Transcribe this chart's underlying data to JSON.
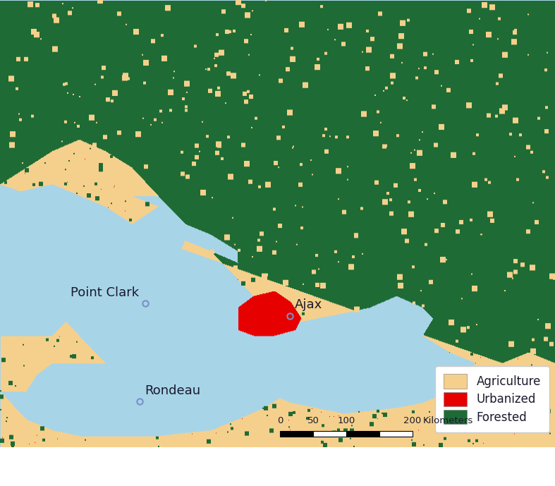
{
  "figsize": [
    7.87,
    6.89
  ],
  "dpi": 100,
  "background_color": "#ffffff",
  "water_color": [
    168,
    212,
    232
  ],
  "agriculture_color": [
    245,
    208,
    140
  ],
  "urbanized_color": [
    230,
    0,
    0
  ],
  "forested_color": [
    30,
    107,
    53
  ],
  "border_color": [
    100,
    100,
    100
  ],
  "legend_items": [
    {
      "label": "Agriculture",
      "color": "#f5d08c"
    },
    {
      "label": "Urbanized",
      "color": "#e60000"
    },
    {
      "label": "Forested",
      "color": "#1e6b35"
    }
  ],
  "sites": [
    {
      "name": "Point Clark",
      "lon": -81.75,
      "lat": 44.07
    },
    {
      "name": "Ajax",
      "lon": -79.02,
      "lat": 43.85
    },
    {
      "name": "Rondeau",
      "lon": -81.86,
      "lat": 42.32
    }
  ],
  "map_extent": [
    -84.5,
    -74.0,
    41.5,
    49.5
  ],
  "label_fontsize": 13,
  "legend_fontsize": 12,
  "site_marker_color": "#7b8fc8",
  "site_marker_size": 6,
  "site_text_color": "#1a1a2e",
  "scale_bar_color": "#1a1a2e"
}
